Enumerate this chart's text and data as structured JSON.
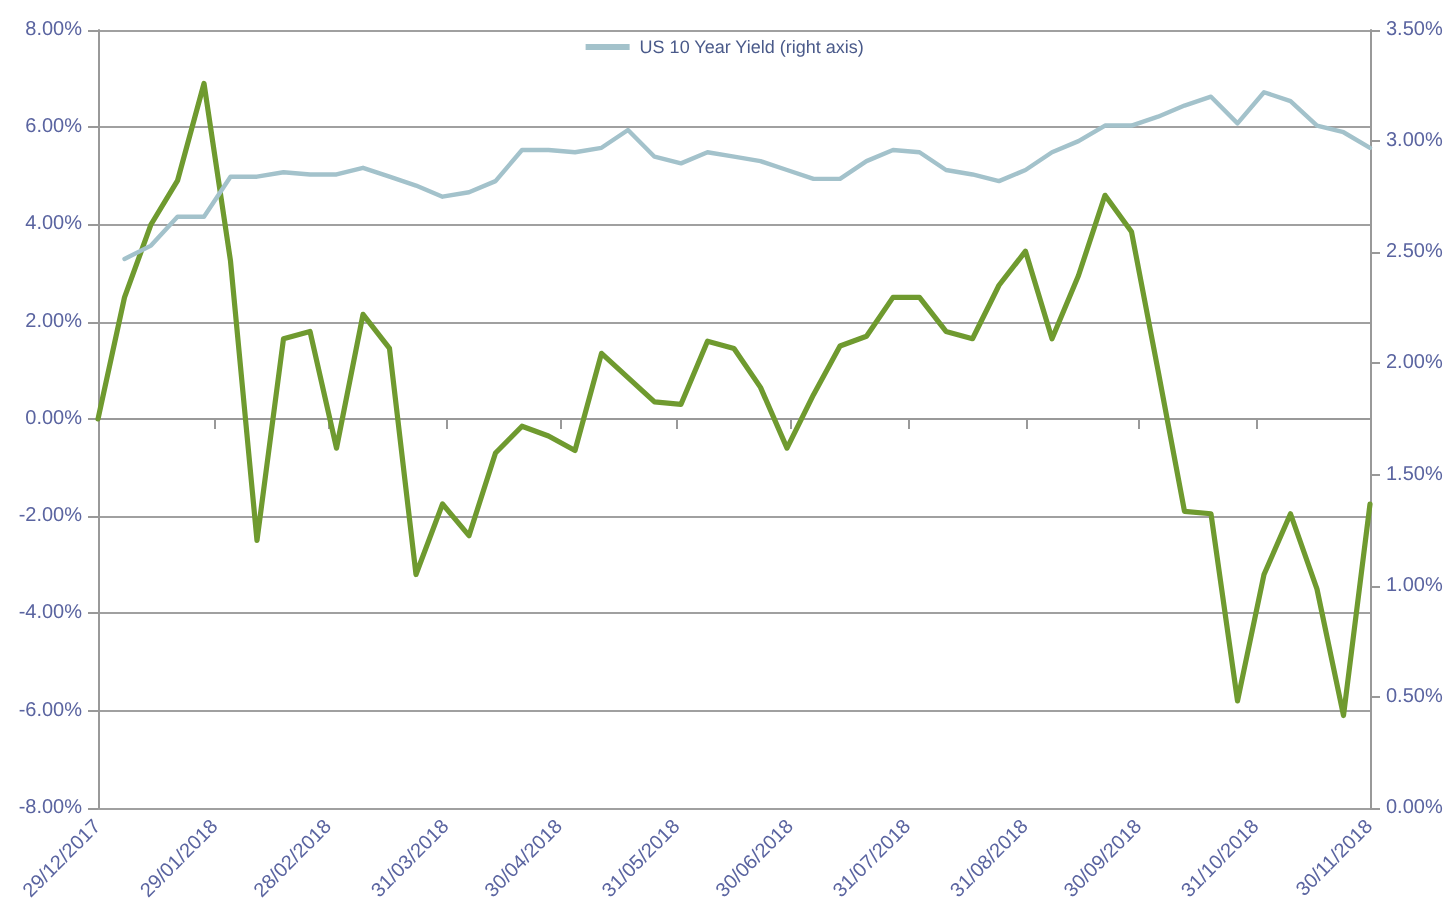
{
  "chart_data": {
    "type": "line",
    "x": [
      "2017-12-29",
      "2018-01-05",
      "2018-01-12",
      "2018-01-19",
      "2018-01-26",
      "2018-02-02",
      "2018-02-09",
      "2018-02-16",
      "2018-02-23",
      "2018-03-02",
      "2018-03-09",
      "2018-03-16",
      "2018-03-23",
      "2018-03-30",
      "2018-04-06",
      "2018-04-13",
      "2018-04-20",
      "2018-04-27",
      "2018-05-04",
      "2018-05-11",
      "2018-05-18",
      "2018-05-25",
      "2018-06-01",
      "2018-06-08",
      "2018-06-15",
      "2018-06-22",
      "2018-06-29",
      "2018-07-06",
      "2018-07-13",
      "2018-07-20",
      "2018-07-27",
      "2018-08-03",
      "2018-08-10",
      "2018-08-17",
      "2018-08-24",
      "2018-08-31",
      "2018-09-07",
      "2018-09-14",
      "2018-09-21",
      "2018-09-28",
      "2018-10-05",
      "2018-10-12",
      "2018-10-19",
      "2018-10-26",
      "2018-11-02",
      "2018-11-09",
      "2018-11-16",
      "2018-11-23",
      "2018-11-30"
    ],
    "series": [
      {
        "color": "#6f9a2f",
        "values": [
          0,
          2.5,
          4.0,
          4.9,
          6.9,
          3.25,
          -2.5,
          1.65,
          1.8,
          -0.6,
          2.15,
          1.45,
          -3.2,
          -1.75,
          -2.4,
          -0.7,
          -0.15,
          -0.35,
          -0.65,
          1.35,
          0.85,
          0.35,
          0.3,
          1.6,
          1.45,
          0.65,
          -0.6,
          0.5,
          1.5,
          1.7,
          2.5,
          2.5,
          1.8,
          1.65,
          2.75,
          3.45,
          1.65,
          2.95,
          4.6,
          3.85,
          1.0,
          -1.9,
          -1.95,
          -5.8,
          -3.2,
          -1.95,
          -3.5,
          -6.1,
          -1.75
        ]
      },
      {
        "name": "US 10 Year Yield (right axis)",
        "color": "#a3c2cb",
        "axis": "y2",
        "values": [
          null,
          2.47,
          2.53,
          2.66,
          2.66,
          2.84,
          2.84,
          2.86,
          2.85,
          2.85,
          2.88,
          2.84,
          2.8,
          2.75,
          2.77,
          2.82,
          2.96,
          2.96,
          2.95,
          2.97,
          3.05,
          2.93,
          2.9,
          2.95,
          2.93,
          2.91,
          2.87,
          2.83,
          2.83,
          2.91,
          2.96,
          2.95,
          2.87,
          2.85,
          2.82,
          2.87,
          2.95,
          3.0,
          3.07,
          3.07,
          3.11,
          3.16,
          3.2,
          3.08,
          3.22,
          3.18,
          3.07,
          3.04,
          2.97
        ]
      }
    ],
    "xlim": [
      "2017-12-29",
      "2018-11-30"
    ],
    "xticks": [
      {
        "value": "2017-12-29",
        "label": "29/12/2017"
      },
      {
        "value": "2018-01-29",
        "label": "29/01/2018"
      },
      {
        "value": "2018-02-28",
        "label": "28/02/2018"
      },
      {
        "value": "2018-03-31",
        "label": "31/03/2018"
      },
      {
        "value": "2018-04-30",
        "label": "30/04/2018"
      },
      {
        "value": "2018-05-31",
        "label": "31/05/2018"
      },
      {
        "value": "2018-06-30",
        "label": "30/06/2018"
      },
      {
        "value": "2018-07-31",
        "label": "31/07/2018"
      },
      {
        "value": "2018-08-31",
        "label": "31/08/2018"
      },
      {
        "value": "2018-09-30",
        "label": "30/09/2018"
      },
      {
        "value": "2018-10-31",
        "label": "31/10/2018"
      },
      {
        "value": "2018-11-30",
        "label": "30/11/2018"
      }
    ],
    "ylim": [
      -8,
      8
    ],
    "yticks": [
      {
        "value": -8,
        "label": "-8.00%"
      },
      {
        "value": -6,
        "label": "-6.00%"
      },
      {
        "value": -4,
        "label": "-4.00%"
      },
      {
        "value": -2,
        "label": "-2.00%"
      },
      {
        "value": 0,
        "label": "0.00%"
      },
      {
        "value": 2,
        "label": "2.00%"
      },
      {
        "value": 4,
        "label": "4.00%"
      },
      {
        "value": 6,
        "label": "6.00%"
      },
      {
        "value": 8,
        "label": "8.00%"
      }
    ],
    "y2lim": [
      0,
      3.5
    ],
    "y2ticks": [
      {
        "value": 0,
        "label": "0.00%"
      },
      {
        "value": 0.5,
        "label": "0.50%"
      },
      {
        "value": 1,
        "label": "1.00%"
      },
      {
        "value": 1.5,
        "label": "1.50%"
      },
      {
        "value": 2,
        "label": "2.00%"
      },
      {
        "value": 2.5,
        "label": "2.50%"
      },
      {
        "value": 3,
        "label": "3.00%"
      },
      {
        "value": 3.5,
        "label": "3.50%"
      }
    ],
    "grid": "y",
    "legend": "top",
    "marker": "none",
    "line_style": "solid"
  }
}
